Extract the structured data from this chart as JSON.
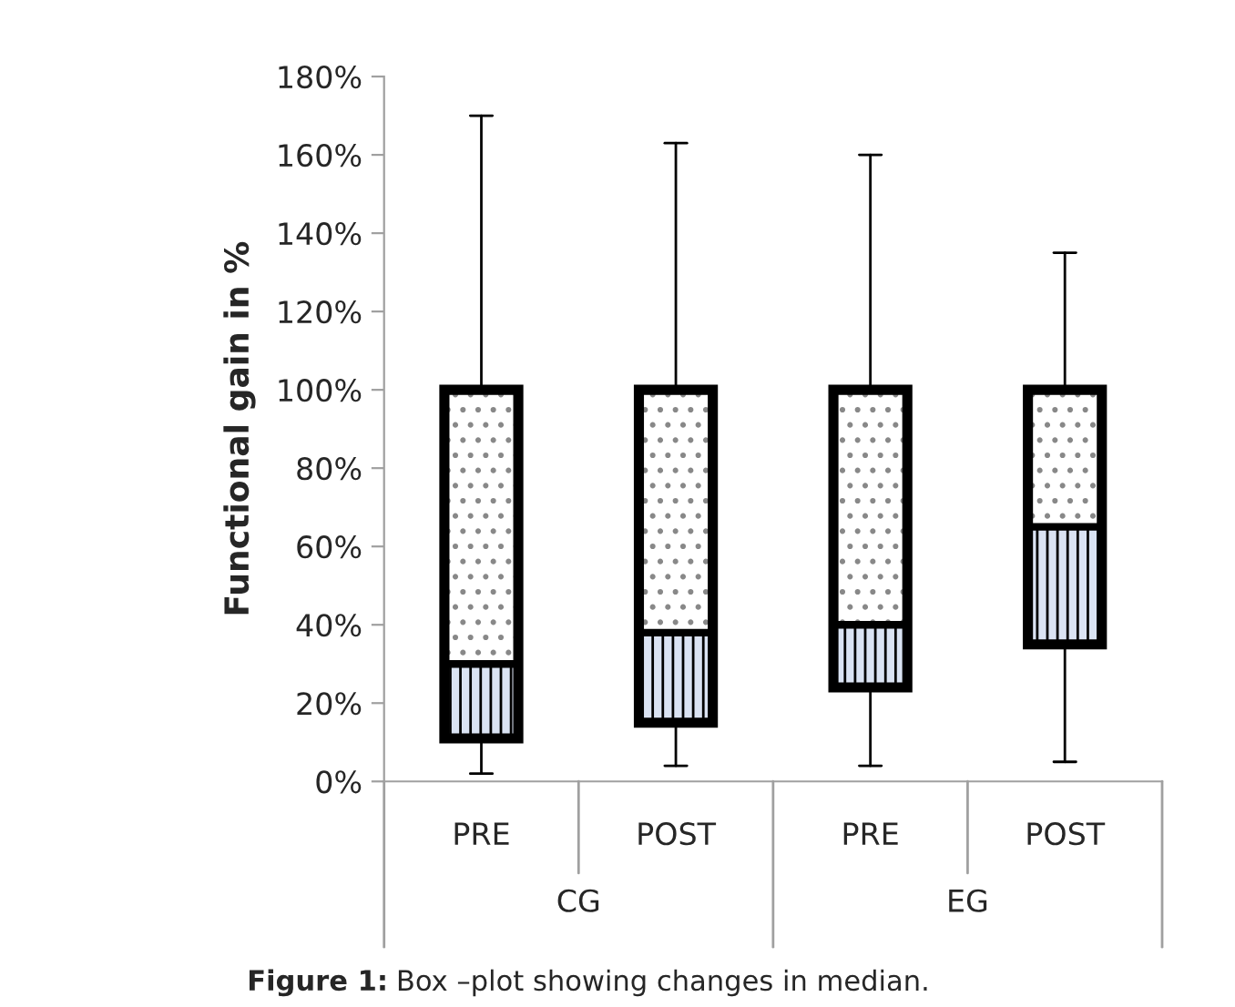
{
  "chart_data": {
    "type": "box",
    "ylabel": "Functional gain in %",
    "categories": [
      "PRE",
      "POST",
      "PRE",
      "POST"
    ],
    "series": [
      {
        "color": "#dae3f3",
        "boxes": [
          {
            "low": 2,
            "q1": 11,
            "median": 30,
            "q3": 100,
            "high": 170
          },
          {
            "low": 4,
            "q1": 15,
            "median": 38,
            "q3": 100,
            "high": 163
          },
          {
            "low": 4,
            "q1": 24,
            "median": 40,
            "q3": 100,
            "high": 160
          },
          {
            "low": 5,
            "q1": 35,
            "median": 65,
            "q3": 100,
            "high": 135
          }
        ]
      }
    ],
    "ylim": [
      0,
      180
    ],
    "yticks": [
      {
        "value": 0,
        "label": "0%"
      },
      {
        "value": 20,
        "label": "20%"
      },
      {
        "value": 40,
        "label": "40%"
      },
      {
        "value": 60,
        "label": "60%"
      },
      {
        "value": 80,
        "label": "80%"
      },
      {
        "value": 100,
        "label": "100%"
      },
      {
        "value": 120,
        "label": "120%"
      },
      {
        "value": 140,
        "label": "140%"
      },
      {
        "value": 160,
        "label": "160%"
      },
      {
        "value": 180,
        "label": "180%"
      }
    ],
    "grid": false,
    "annotations": [
      "CG",
      "EG",
      "Figure 1: Box –plot showing changes in median."
    ]
  }
}
